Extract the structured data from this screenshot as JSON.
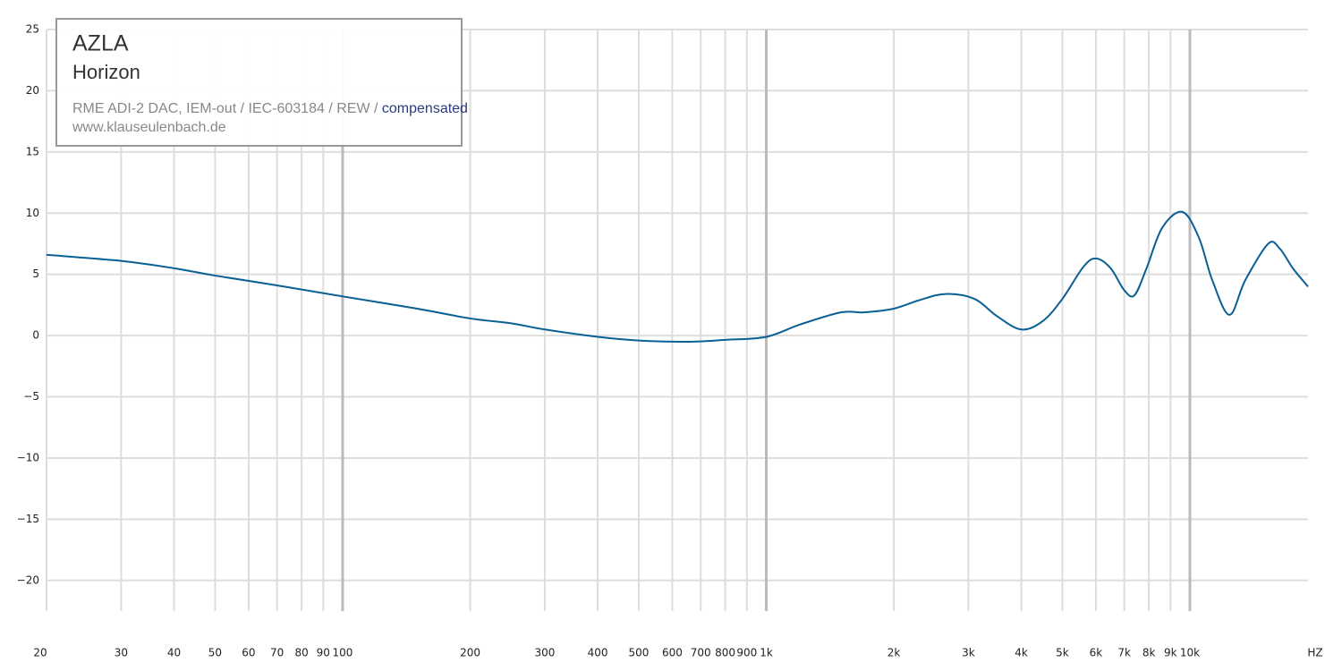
{
  "chart_data": {
    "type": "line",
    "title": "AZLA",
    "subtitle": "Horizon",
    "description": "RME ADI-2 DAC, IEM-out / IEC-603184 / REW /",
    "description_highlight": "compensated",
    "source": "www.klauseulenbach.de",
    "x_label": "HZ",
    "log_x": true,
    "grid": true,
    "color": "#0a5f93",
    "x": [
      20,
      30,
      40,
      50,
      70,
      100,
      150,
      200,
      250,
      300,
      400,
      500,
      650,
      800,
      1000,
      1200,
      1500,
      1700,
      2000,
      2300,
      2650,
      3100,
      3500,
      4000,
      4500,
      5000,
      5600,
      6000,
      6500,
      7000,
      7400,
      7900,
      8600,
      9600,
      10500,
      11300,
      12400,
      13500,
      15300,
      16300,
      17500,
      19000
    ],
    "values": [
      6.6,
      6.1,
      5.5,
      4.9,
      4.1,
      3.2,
      2.2,
      1.4,
      1.0,
      0.5,
      -0.1,
      -0.4,
      -0.5,
      -0.35,
      -0.1,
      0.9,
      1.9,
      1.9,
      2.2,
      2.9,
      3.4,
      3.0,
      1.6,
      0.5,
      1.2,
      3.0,
      5.6,
      6.3,
      5.5,
      3.7,
      3.3,
      5.5,
      8.8,
      10.1,
      8.0,
      4.5,
      1.7,
      4.5,
      7.5,
      7.1,
      5.5,
      4.0
    ],
    "xlim": [
      20,
      19000
    ],
    "ylim": [
      -22.5,
      25
    ],
    "xticks": [
      20,
      30,
      40,
      50,
      60,
      70,
      80,
      90,
      100,
      200,
      300,
      400,
      500,
      600,
      700,
      800,
      900,
      {
        "value": 1000,
        "label": "1k"
      },
      {
        "value": 2000,
        "label": "2k"
      },
      {
        "value": 3000,
        "label": "3k"
      },
      {
        "value": 4000,
        "label": "4k"
      },
      {
        "value": 5000,
        "label": "5k"
      },
      {
        "value": 6000,
        "label": "6k"
      },
      {
        "value": 7000,
        "label": "7k"
      },
      {
        "value": 8000,
        "label": "8k"
      },
      {
        "value": 9000,
        "label": "9k"
      },
      {
        "value": 10000,
        "label": "10k"
      }
    ],
    "yticks": [
      {
        "value": -20,
        "label": "−20"
      },
      {
        "value": -15,
        "label": "−15"
      },
      {
        "value": -10,
        "label": "−10"
      },
      {
        "value": -5,
        "label": "−5"
      },
      0,
      5,
      10,
      15,
      20,
      25
    ]
  }
}
